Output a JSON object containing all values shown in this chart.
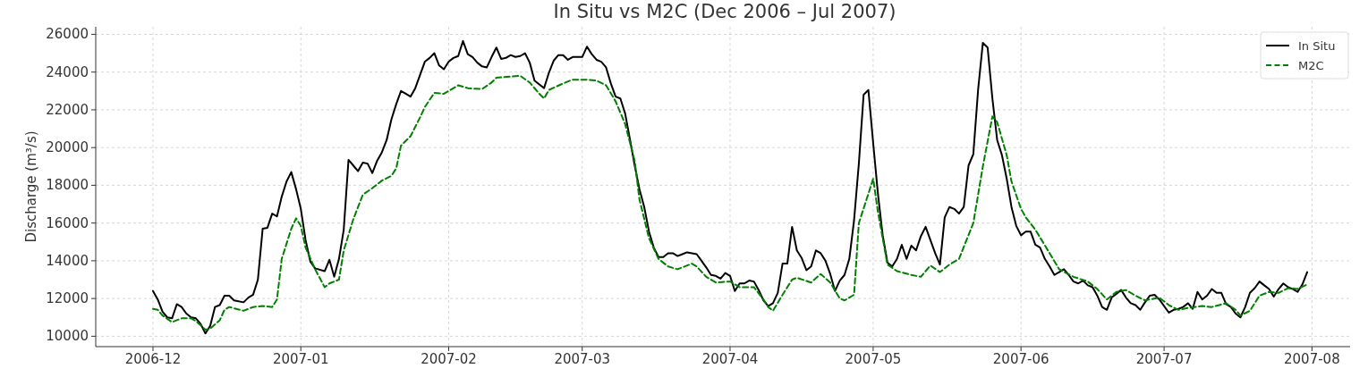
{
  "chart_data": {
    "type": "line",
    "title": "In Situ vs M2C (Dec 2006 – Jul 2007)",
    "ylabel": "Discharge (m³/s)",
    "xlim": [
      "2006-11-19",
      "2007-08-09"
    ],
    "ylim": [
      9450,
      26400
    ],
    "xticks": [
      {
        "value": "2006-12-01",
        "label": "2006-12"
      },
      {
        "value": "2007-01-01",
        "label": "2007-01"
      },
      {
        "value": "2007-02-01",
        "label": "2007-02"
      },
      {
        "value": "2007-03-01",
        "label": "2007-03"
      },
      {
        "value": "2007-04-01",
        "label": "2007-04"
      },
      {
        "value": "2007-05-01",
        "label": "2007-05"
      },
      {
        "value": "2007-06-01",
        "label": "2007-06"
      },
      {
        "value": "2007-07-01",
        "label": "2007-07"
      },
      {
        "value": "2007-08-01",
        "label": "2007-08"
      }
    ],
    "yticks": [
      10000,
      12000,
      14000,
      16000,
      18000,
      20000,
      22000,
      24000,
      26000
    ],
    "grid": true,
    "legend": "top right",
    "series": [
      {
        "name": "In Situ",
        "color": "#000000",
        "line_style": "solid",
        "x": [
          "2006-12-01",
          "2006-12-02",
          "2006-12-03",
          "2006-12-04",
          "2006-12-05",
          "2006-12-06",
          "2006-12-07",
          "2006-12-08",
          "2006-12-09",
          "2006-12-10",
          "2006-12-11",
          "2006-12-12",
          "2006-12-13",
          "2006-12-14",
          "2006-12-15",
          "2006-12-16",
          "2006-12-17",
          "2006-12-18",
          "2006-12-20",
          "2006-12-21",
          "2006-12-22",
          "2006-12-23",
          "2006-12-24",
          "2006-12-25",
          "2006-12-26",
          "2006-12-27",
          "2006-12-28",
          "2006-12-29",
          "2006-12-30",
          "2006-12-31",
          "2007-01-01",
          "2007-01-02",
          "2007-01-03",
          "2007-01-04",
          "2007-01-06",
          "2007-01-07",
          "2007-01-08",
          "2007-01-09",
          "2007-01-10",
          "2007-01-11",
          "2007-01-12",
          "2007-01-13",
          "2007-01-14",
          "2007-01-15",
          "2007-01-16",
          "2007-01-17",
          "2007-01-18",
          "2007-01-19",
          "2007-01-20",
          "2007-01-21",
          "2007-01-22",
          "2007-01-23",
          "2007-01-24",
          "2007-01-25",
          "2007-01-27",
          "2007-01-28",
          "2007-01-29",
          "2007-01-30",
          "2007-01-31",
          "2007-02-01",
          "2007-02-02",
          "2007-02-03",
          "2007-02-04",
          "2007-02-05",
          "2007-02-06",
          "2007-02-07",
          "2007-02-08",
          "2007-02-09",
          "2007-02-10",
          "2007-02-11",
          "2007-02-12",
          "2007-02-13",
          "2007-02-14",
          "2007-02-15",
          "2007-02-16",
          "2007-02-17",
          "2007-02-18",
          "2007-02-19",
          "2007-02-20",
          "2007-02-21",
          "2007-02-22",
          "2007-02-23",
          "2007-02-24",
          "2007-02-25",
          "2007-02-26",
          "2007-02-27",
          "2007-03-01",
          "2007-03-02",
          "2007-03-03",
          "2007-03-04",
          "2007-03-05",
          "2007-03-06",
          "2007-03-07",
          "2007-03-08",
          "2007-03-09",
          "2007-03-10",
          "2007-03-11",
          "2007-03-12",
          "2007-03-13",
          "2007-03-14",
          "2007-03-15",
          "2007-03-16",
          "2007-03-17",
          "2007-03-18",
          "2007-03-19",
          "2007-03-20",
          "2007-03-21",
          "2007-03-22",
          "2007-03-23",
          "2007-03-25",
          "2007-03-26",
          "2007-03-27",
          "2007-03-28",
          "2007-03-29",
          "2007-03-30",
          "2007-03-31",
          "2007-04-01",
          "2007-04-02",
          "2007-04-03",
          "2007-04-04",
          "2007-04-05",
          "2007-04-06",
          "2007-04-07",
          "2007-04-08",
          "2007-04-09",
          "2007-04-10",
          "2007-04-11",
          "2007-04-12",
          "2007-04-13",
          "2007-04-14",
          "2007-04-15",
          "2007-04-16",
          "2007-04-17",
          "2007-04-18",
          "2007-04-19",
          "2007-04-20",
          "2007-04-21",
          "2007-04-22",
          "2007-04-23",
          "2007-04-24",
          "2007-04-25",
          "2007-04-26",
          "2007-04-27",
          "2007-04-28",
          "2007-04-29",
          "2007-04-30",
          "2007-05-01",
          "2007-05-02",
          "2007-05-03",
          "2007-05-04",
          "2007-05-05",
          "2007-05-06",
          "2007-05-07",
          "2007-05-08",
          "2007-05-09",
          "2007-05-10",
          "2007-05-11",
          "2007-05-12",
          "2007-05-13",
          "2007-05-14",
          "2007-05-15",
          "2007-05-16",
          "2007-05-17",
          "2007-05-18",
          "2007-05-19",
          "2007-05-20",
          "2007-05-21",
          "2007-05-22",
          "2007-05-23",
          "2007-05-24",
          "2007-05-25",
          "2007-05-26",
          "2007-05-27",
          "2007-05-28",
          "2007-05-29",
          "2007-05-30",
          "2007-05-31",
          "2007-06-01",
          "2007-06-02",
          "2007-06-03",
          "2007-06-04",
          "2007-06-05",
          "2007-06-06",
          "2007-06-07",
          "2007-06-08",
          "2007-06-09",
          "2007-06-10",
          "2007-06-11",
          "2007-06-12",
          "2007-06-13",
          "2007-06-14",
          "2007-06-15",
          "2007-06-16",
          "2007-06-17",
          "2007-06-18",
          "2007-06-19",
          "2007-06-20",
          "2007-06-21",
          "2007-06-22",
          "2007-06-23",
          "2007-06-24",
          "2007-06-25",
          "2007-06-26",
          "2007-06-27",
          "2007-06-28",
          "2007-06-29",
          "2007-06-30",
          "2007-07-02",
          "2007-07-03",
          "2007-07-04",
          "2007-07-05",
          "2007-07-06",
          "2007-07-07",
          "2007-07-08",
          "2007-07-09",
          "2007-07-10",
          "2007-07-11",
          "2007-07-12",
          "2007-07-13",
          "2007-07-14",
          "2007-07-15",
          "2007-07-16",
          "2007-07-17",
          "2007-07-18",
          "2007-07-19",
          "2007-07-20",
          "2007-07-21",
          "2007-07-22",
          "2007-07-23",
          "2007-07-24",
          "2007-07-25",
          "2007-07-26",
          "2007-07-27",
          "2007-07-28",
          "2007-07-29",
          "2007-07-30",
          "2007-07-31"
        ],
        "values": [
          12400,
          11950,
          11300,
          11000,
          10950,
          11700,
          11550,
          11200,
          11000,
          10950,
          10650,
          10150,
          10550,
          11550,
          11650,
          12150,
          12150,
          11900,
          11800,
          12050,
          12200,
          13000,
          15700,
          15750,
          16500,
          16350,
          17400,
          18200,
          18700,
          17800,
          16750,
          15100,
          13950,
          13600,
          13450,
          14050,
          13150,
          14100,
          15650,
          19350,
          19050,
          18750,
          19200,
          19150,
          18650,
          19300,
          19750,
          20400,
          21500,
          22300,
          23000,
          22850,
          22700,
          23150,
          24550,
          24750,
          25000,
          24350,
          24150,
          24550,
          24750,
          24850,
          25650,
          24950,
          24800,
          24500,
          24300,
          24250,
          24800,
          25300,
          24700,
          24750,
          24900,
          24800,
          24850,
          25000,
          24500,
          23550,
          23350,
          23150,
          23950,
          24600,
          24900,
          24900,
          24650,
          24800,
          24800,
          25350,
          24950,
          24650,
          24550,
          24250,
          23400,
          22700,
          22600,
          21800,
          20450,
          19050,
          17800,
          16850,
          15550,
          14700,
          14200,
          14200,
          14400,
          14400,
          14250,
          14350,
          14450,
          14350,
          14000,
          13650,
          13250,
          13200,
          13050,
          13350,
          13200,
          12400,
          12800,
          12800,
          12950,
          12900,
          12450,
          11900,
          11600,
          11750,
          12300,
          13850,
          13850,
          15800,
          14550,
          14150,
          13500,
          13700,
          14550,
          14400,
          14000,
          13300,
          12400,
          12950,
          13250,
          14100,
          16150,
          19150,
          22800,
          23050,
          20250,
          17550,
          15350,
          13900,
          13700,
          14100,
          14850,
          14100,
          14800,
          14550,
          15300,
          15800,
          15100,
          14400,
          13800,
          16300,
          16850,
          16750,
          16500,
          16850,
          19050,
          19650,
          23050,
          25550,
          25300,
          22600,
          20400,
          19600,
          18350,
          16850,
          15850,
          15350,
          15550,
          15550,
          14850,
          14700,
          14100,
          13700,
          13250,
          13400,
          13550,
          13250,
          12900,
          12800,
          12950,
          12700,
          12600,
          12150,
          11550,
          11400,
          12050,
          12250,
          12450,
          12050,
          11750,
          11650,
          11400,
          11800,
          12150,
          12200,
          11950,
          11250,
          11400,
          11450,
          11550,
          11750,
          11450,
          12350,
          11950,
          12150,
          12500,
          12300,
          12300,
          11700,
          11550,
          11200,
          11000,
          11550,
          12300,
          12550,
          12900,
          12700,
          12500,
          12100,
          12500,
          12800,
          12600,
          12500,
          12350,
          12750,
          13400
        ]
      },
      {
        "name": "M2C",
        "color": "#008000",
        "line_style": "dashed",
        "x": [
          "2006-12-01",
          "2006-12-02",
          "2006-12-03",
          "2006-12-05",
          "2006-12-07",
          "2006-12-09",
          "2006-12-10",
          "2006-12-12",
          "2006-12-13",
          "2006-12-15",
          "2006-12-16",
          "2006-12-17",
          "2006-12-20",
          "2006-12-22",
          "2006-12-24",
          "2006-12-26",
          "2006-12-27",
          "2006-12-28",
          "2006-12-30",
          "2006-12-31",
          "2007-01-01",
          "2007-01-02",
          "2007-01-04",
          "2007-01-06",
          "2007-01-07",
          "2007-01-09",
          "2007-01-10",
          "2007-01-12",
          "2007-01-14",
          "2007-01-16",
          "2007-01-18",
          "2007-01-20",
          "2007-01-21",
          "2007-01-22",
          "2007-01-24",
          "2007-01-26",
          "2007-01-27",
          "2007-01-29",
          "2007-01-31",
          "2007-02-03",
          "2007-02-05",
          "2007-02-08",
          "2007-02-10",
          "2007-02-11",
          "2007-02-16",
          "2007-02-18",
          "2007-02-20",
          "2007-02-21",
          "2007-02-22",
          "2007-02-25",
          "2007-02-27",
          "2007-03-02",
          "2007-03-04",
          "2007-03-06",
          "2007-03-08",
          "2007-03-10",
          "2007-03-12",
          "2007-03-13",
          "2007-03-15",
          "2007-03-17",
          "2007-03-19",
          "2007-03-21",
          "2007-03-24",
          "2007-03-25",
          "2007-03-27",
          "2007-03-29",
          "2007-04-01",
          "2007-04-03",
          "2007-04-06",
          "2007-04-08",
          "2007-04-09",
          "2007-04-10",
          "2007-04-12",
          "2007-04-14",
          "2007-04-15",
          "2007-04-18",
          "2007-04-20",
          "2007-04-22",
          "2007-04-24",
          "2007-04-25",
          "2007-04-27",
          "2007-04-28",
          "2007-04-30",
          "2007-05-01",
          "2007-05-02",
          "2007-05-04",
          "2007-05-06",
          "2007-05-09",
          "2007-05-11",
          "2007-05-13",
          "2007-05-15",
          "2007-05-17",
          "2007-05-19",
          "2007-05-22",
          "2007-05-24",
          "2007-05-26",
          "2007-05-27",
          "2007-05-29",
          "2007-05-30",
          "2007-06-01",
          "2007-06-02",
          "2007-06-04",
          "2007-06-07",
          "2007-06-09",
          "2007-06-12",
          "2007-06-15",
          "2007-06-17",
          "2007-06-19",
          "2007-06-21",
          "2007-06-23",
          "2007-06-25",
          "2007-06-27",
          "2007-06-30",
          "2007-07-02",
          "2007-07-04",
          "2007-07-06",
          "2007-07-09",
          "2007-07-11",
          "2007-07-14",
          "2007-07-16",
          "2007-07-17",
          "2007-07-19",
          "2007-07-21",
          "2007-07-23",
          "2007-07-25",
          "2007-07-27",
          "2007-07-29",
          "2007-07-31"
        ],
        "values": [
          11450,
          11400,
          11100,
          10750,
          10950,
          10950,
          10800,
          10350,
          10400,
          10850,
          11400,
          11550,
          11350,
          11550,
          11600,
          11550,
          11950,
          14100,
          15700,
          16250,
          15850,
          14700,
          13550,
          12600,
          12800,
          13000,
          14550,
          16200,
          17500,
          17850,
          18250,
          18500,
          18900,
          20100,
          20600,
          21600,
          22150,
          22900,
          22850,
          23300,
          23150,
          23100,
          23450,
          23700,
          23800,
          23450,
          22850,
          22600,
          23050,
          23400,
          23600,
          23600,
          23550,
          23300,
          22450,
          21250,
          19300,
          17250,
          15200,
          14100,
          13700,
          13550,
          13850,
          13700,
          13150,
          12850,
          12900,
          12600,
          12600,
          11950,
          11550,
          11350,
          12200,
          13000,
          13100,
          12850,
          13300,
          12850,
          12000,
          11900,
          12200,
          16000,
          17550,
          18350,
          16600,
          13800,
          13450,
          13250,
          13150,
          13750,
          13400,
          13800,
          14100,
          16000,
          19000,
          21650,
          21350,
          19600,
          18200,
          16750,
          16300,
          15650,
          14400,
          13550,
          13150,
          12900,
          12500,
          11950,
          12350,
          12450,
          12150,
          11900,
          12050,
          11650,
          11400,
          11500,
          11600,
          11550,
          11750,
          11400,
          11100,
          11350,
          12150,
          12350,
          12300,
          12550,
          12500,
          12750
        ]
      }
    ]
  }
}
